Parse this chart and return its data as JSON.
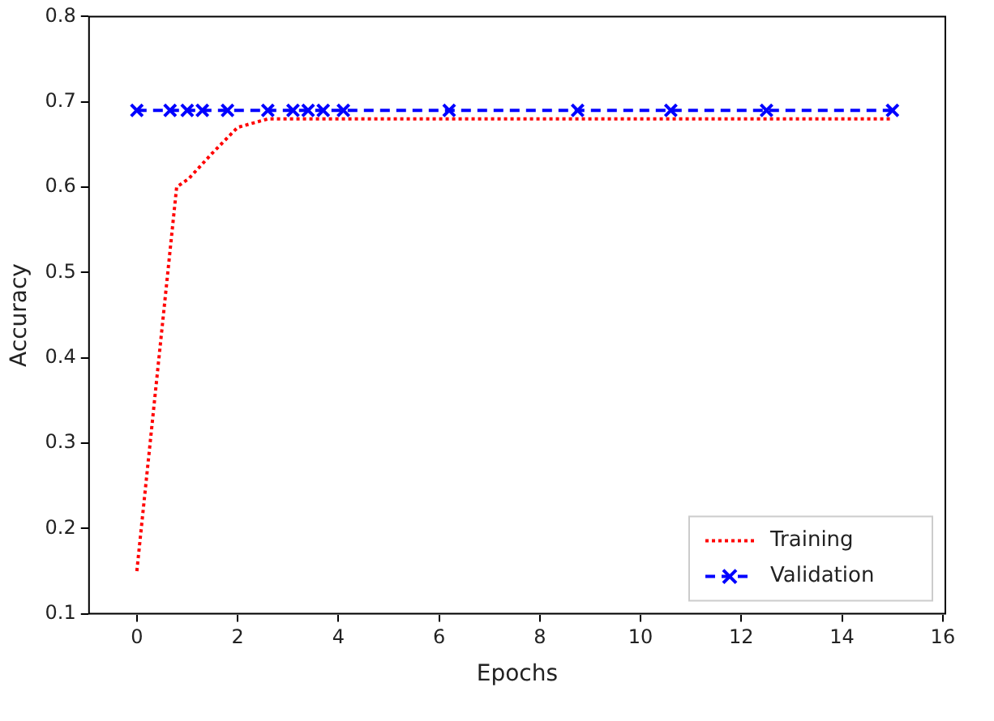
{
  "chart_data": {
    "type": "line",
    "xlabel": "Epochs",
    "ylabel": "Accuracy",
    "xlim": [
      -0.95,
      16.05
    ],
    "xticks": [
      0,
      2,
      4,
      6,
      8,
      10,
      12,
      14,
      16
    ],
    "ylim": [
      0.1,
      0.8
    ],
    "yticks": [
      {
        "value": 0.1,
        "label": "0.1"
      },
      {
        "value": 0.2,
        "label": "0.2"
      },
      {
        "value": 0.3,
        "label": "0.3"
      },
      {
        "value": 0.4,
        "label": "0.4"
      },
      {
        "value": 0.5,
        "label": "0.5"
      },
      {
        "value": 0.6,
        "label": "0.6"
      },
      {
        "value": 0.7,
        "label": "0.7"
      },
      {
        "value": 0.8,
        "label": "0.8"
      }
    ],
    "grid": false,
    "legend": "bottom right",
    "series": [
      {
        "name": "Training",
        "color": "#ff0000",
        "line_style": "dotted",
        "marker": "none",
        "x": [
          0,
          0.79,
          1.03,
          1.5,
          2.0,
          2.6,
          15
        ],
        "values": [
          0.15,
          0.6,
          0.61,
          0.64,
          0.67,
          0.68,
          0.68
        ]
      },
      {
        "name": "Validation",
        "color": "#0000ff",
        "line_style": "dashed",
        "marker": "cross",
        "x": [
          0,
          0.66,
          1.0,
          1.3,
          1.8,
          2.6,
          3.1,
          3.4,
          3.7,
          4.1,
          6.2,
          8.75,
          10.6,
          12.5,
          15
        ],
        "values": [
          0.69,
          0.69,
          0.69,
          0.69,
          0.69,
          0.69,
          0.69,
          0.69,
          0.69,
          0.69,
          0.69,
          0.69,
          0.69,
          0.69,
          0.69
        ]
      }
    ]
  }
}
